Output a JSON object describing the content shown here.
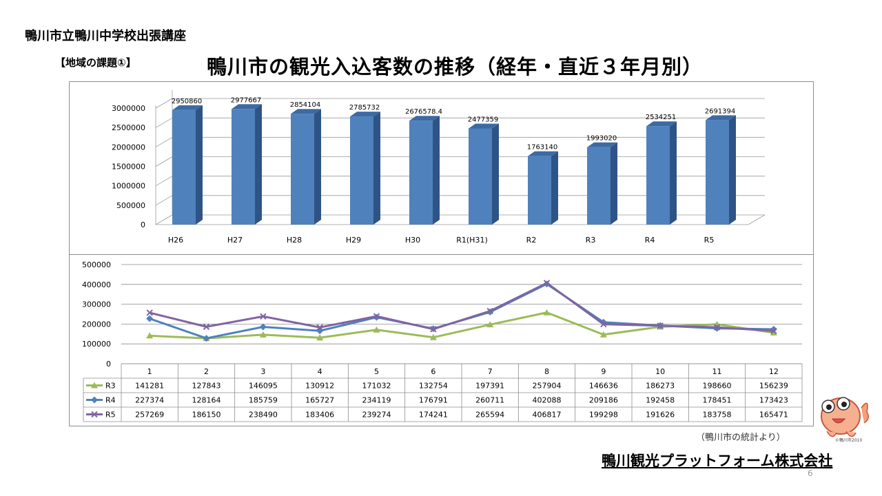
{
  "header": {
    "org_label": "鴨川市立鴨川中学校出張講座",
    "topic_label": "【地域の課題①】",
    "title": "鴨川市の観光入込客数の推移（経年・直近３年月別）"
  },
  "footer": {
    "source": "（鴨川市の統計より）",
    "company": "鴨川観光プラットフォーム株式会社",
    "page_number": "6",
    "mascot_copyright": "©鴨川市2010"
  },
  "chart_data": [
    {
      "type": "bar",
      "style": "3d-column",
      "categories": [
        "H26",
        "H27",
        "H28",
        "H29",
        "H30",
        "R1(H31)",
        "R2",
        "R3",
        "R4",
        "R5"
      ],
      "values": [
        2950860,
        2977667,
        2854104,
        2785732,
        2676578.4,
        2477359,
        1763140,
        1993020,
        2534251,
        2691394
      ],
      "value_labels": [
        "2950860",
        "2977667",
        "2854104",
        "2785732",
        "2676578.4",
        "2477359",
        "1763140",
        "1993020",
        "2534251",
        "2691394"
      ],
      "yticks": [
        "0",
        "500000",
        "1000000",
        "1500000",
        "2000000",
        "2500000",
        "3000000"
      ],
      "ylim": [
        0,
        3000000
      ],
      "grid": true,
      "colors": {
        "bar_front": "#4f81bd",
        "bar_side": "#2e5486",
        "bar_top": "#3d6aa2"
      }
    },
    {
      "type": "line",
      "categories": [
        "1",
        "2",
        "3",
        "4",
        "5",
        "6",
        "7",
        "8",
        "9",
        "10",
        "11",
        "12"
      ],
      "yticks": [
        "0",
        "100000",
        "200000",
        "300000",
        "400000",
        "500000"
      ],
      "ylim": [
        0,
        500000
      ],
      "grid": true,
      "legend_position": "left (data table)",
      "series": [
        {
          "name": "R3",
          "color": "#9bbb59",
          "marker": "triangle",
          "values": [
            141281,
            127843,
            146095,
            130912,
            171032,
            132754,
            197391,
            257904,
            146636,
            186273,
            198660,
            156239
          ],
          "labels": [
            "141281",
            "127843",
            "146095",
            "130912",
            "171032",
            "132754",
            "197391",
            "257904",
            "146636",
            "186273",
            "198660",
            "156239"
          ]
        },
        {
          "name": "R4",
          "color": "#4f81bd",
          "marker": "diamond",
          "values": [
            227374,
            128164,
            185759,
            165727,
            234119,
            176791,
            260711,
            402088,
            209186,
            192458,
            178451,
            173423
          ],
          "labels": [
            "227374",
            "128164",
            "185759",
            "165727",
            "234119",
            "176791",
            "260711",
            "402088",
            "209186",
            "192458",
            "178451",
            "173423"
          ]
        },
        {
          "name": "R5",
          "color": "#8064a2",
          "marker": "x",
          "values": [
            257269,
            186150,
            238490,
            183406,
            239274,
            174241,
            265594,
            406817,
            199298,
            191626,
            183758,
            165471
          ],
          "labels": [
            "257269",
            "186150",
            "238490",
            "183406",
            "239274",
            "174241",
            "265594",
            "406817",
            "199298",
            "191626",
            "183758",
            "165471"
          ]
        }
      ]
    }
  ]
}
